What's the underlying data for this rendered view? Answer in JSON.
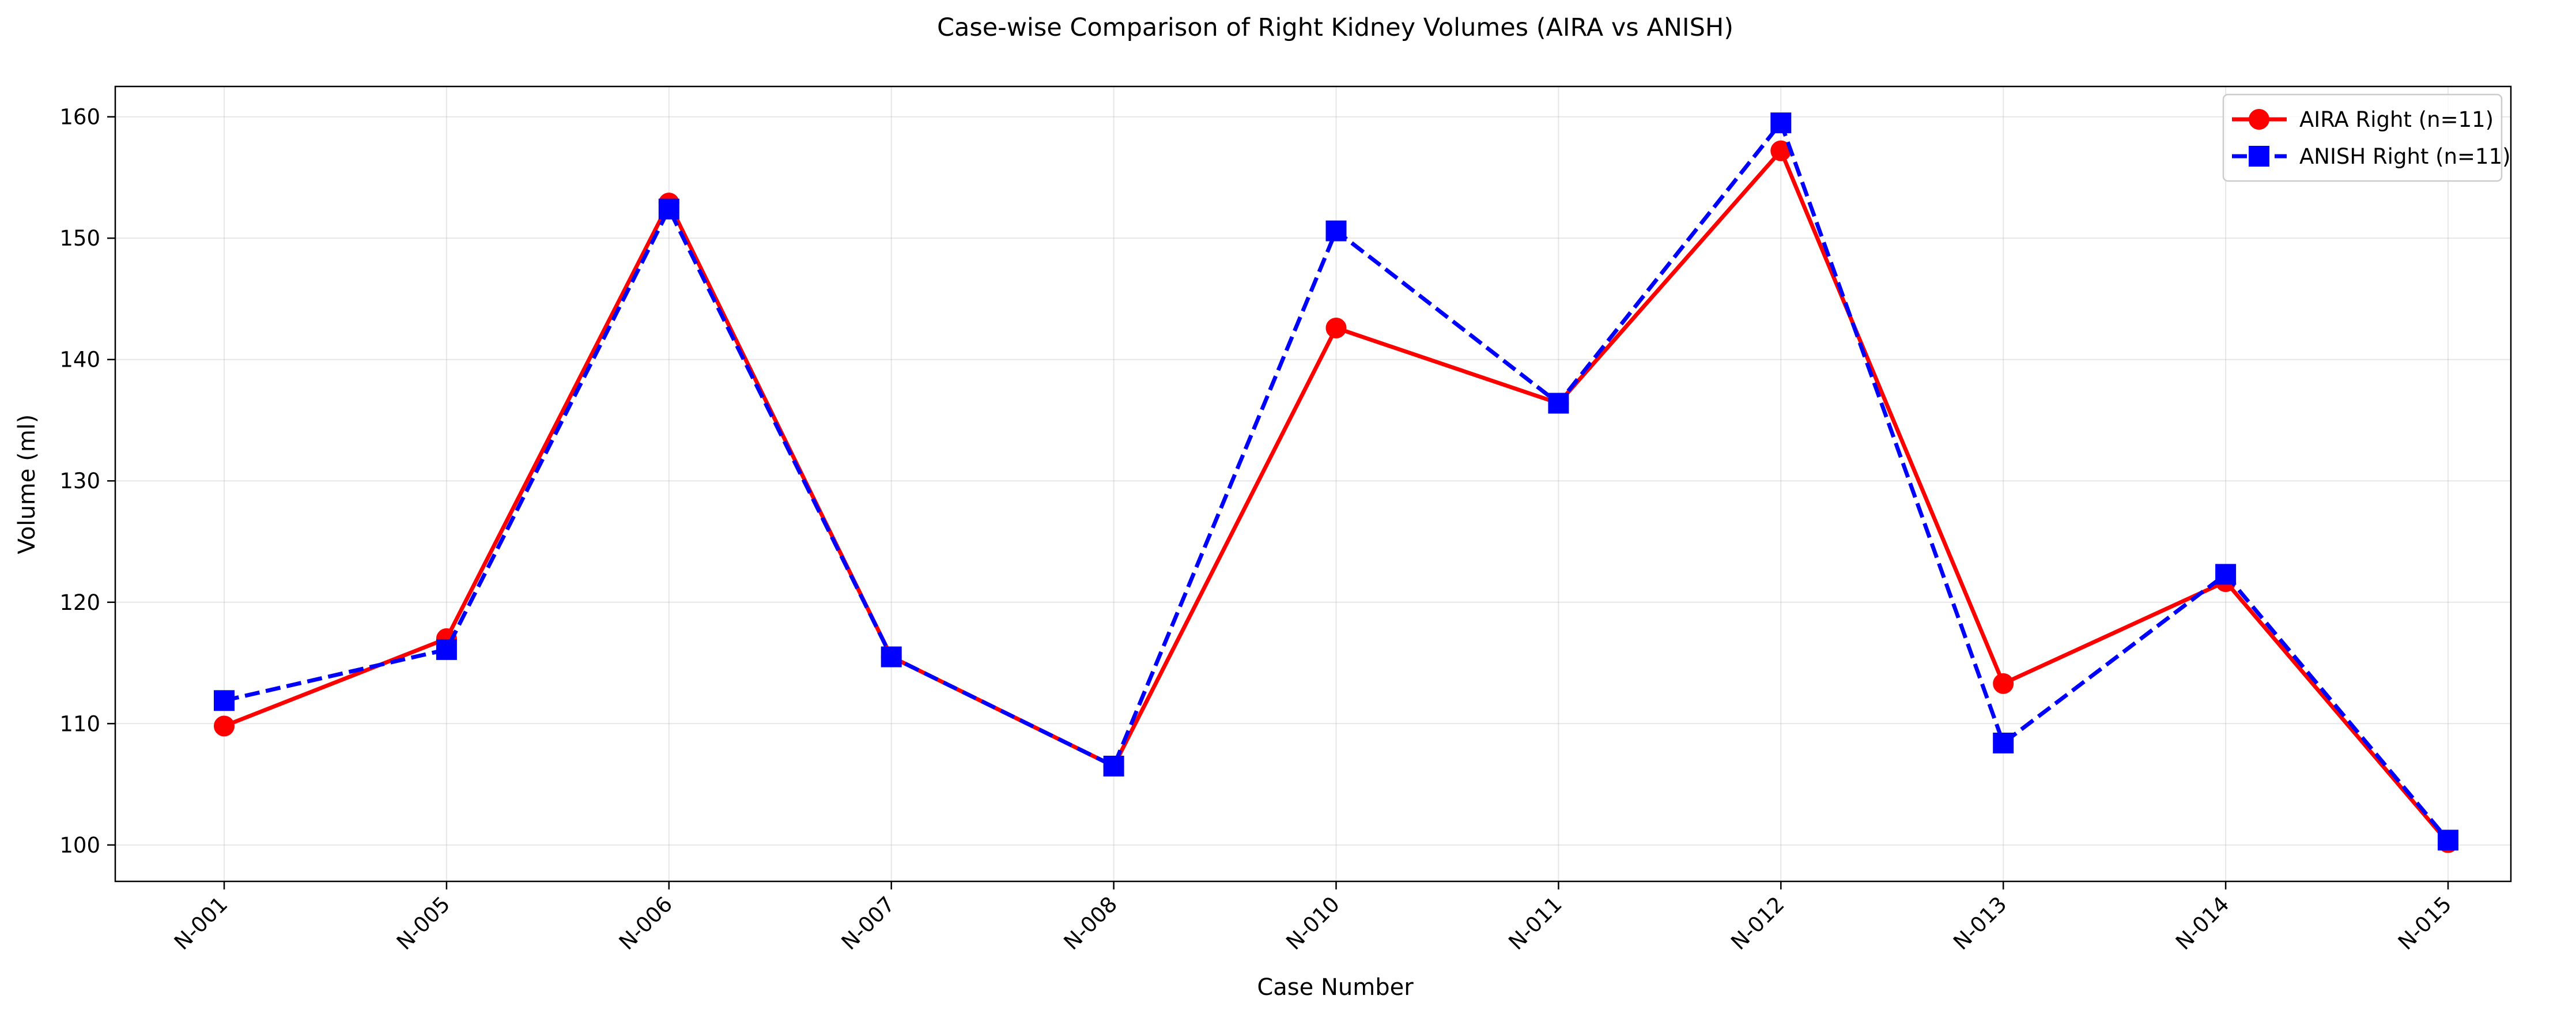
{
  "chart_data": {
    "type": "line",
    "title": "Case-wise Comparison of Right Kidney Volumes (AIRA vs ANISH)",
    "xlabel": "Case Number",
    "ylabel": "Volume (ml)",
    "categories": [
      "N-001",
      "N-005",
      "N-006",
      "N-007",
      "N-008",
      "N-010",
      "N-011",
      "N-012",
      "N-013",
      "N-014",
      "N-015"
    ],
    "ylim": [
      97,
      162.5
    ],
    "yticks": [
      100,
      110,
      120,
      130,
      140,
      150,
      160
    ],
    "grid": true,
    "legend_position": "top-right",
    "series": [
      {
        "name": "AIRA Right (n=11)",
        "color": "#ff0000",
        "marker": "circle",
        "linestyle": "solid",
        "values": [
          109.8,
          117.0,
          152.9,
          115.5,
          106.5,
          142.6,
          136.4,
          157.2,
          113.3,
          121.7,
          100.2
        ]
      },
      {
        "name": "ANISH Right (n=11)",
        "color": "#0000ff",
        "marker": "square",
        "linestyle": "dashed",
        "values": [
          111.9,
          116.1,
          152.4,
          115.5,
          106.5,
          150.6,
          136.4,
          159.5,
          108.4,
          122.3,
          100.4
        ]
      }
    ]
  }
}
